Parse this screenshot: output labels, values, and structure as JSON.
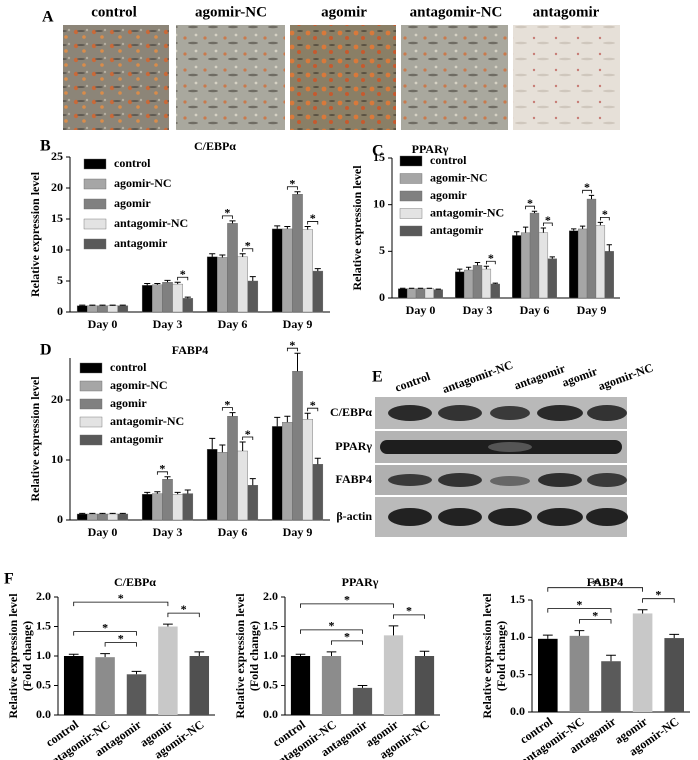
{
  "panel_a": {
    "label": "A",
    "columns": [
      "control",
      "agomir-NC",
      "agomir",
      "antagomir-NC",
      "antagomir"
    ]
  },
  "panel_e": {
    "label": "E",
    "columns": [
      "control",
      "antagomir-NC",
      "antagomir",
      "agomir",
      "agomir-NC"
    ],
    "rows": [
      "C/EBPα",
      "PPARγ",
      "FABP4",
      "β-actin"
    ]
  },
  "panel_f": {
    "label": "F"
  },
  "chart_data": [
    {
      "type": "bar",
      "panel": "B",
      "title": "C/EBPα",
      "ylabel": "Relative expression level",
      "categories": [
        "Day 0",
        "Day 3",
        "Day 6",
        "Day 9"
      ],
      "ylim": [
        0,
        25
      ],
      "yticks": [
        0,
        5,
        10,
        15,
        20,
        25
      ],
      "legend": "upper left",
      "series": [
        {
          "name": "control",
          "color": "#000000",
          "values": [
            1,
            4.3,
            8.9,
            13.4
          ],
          "errors": [
            0.1,
            0.3,
            0.5,
            0.5
          ]
        },
        {
          "name": "agomir-NC",
          "color": "#a6a6a6",
          "values": [
            1,
            4.4,
            8.8,
            13.4
          ],
          "errors": [
            0.1,
            0.2,
            0.4,
            0.4
          ]
        },
        {
          "name": "agomir",
          "color": "#808080",
          "values": [
            1,
            4.8,
            14.3,
            19.0
          ],
          "errors": [
            0.1,
            0.3,
            0.4,
            0.4
          ]
        },
        {
          "name": "antagomir-NC",
          "color": "#e3e3e3",
          "values": [
            1,
            4.5,
            8.9,
            13.3
          ],
          "errors": [
            0.1,
            0.3,
            0.5,
            0.5
          ]
        },
        {
          "name": "antagomir",
          "color": "#595959",
          "values": [
            1,
            2.2,
            5.0,
            6.6
          ],
          "errors": [
            0.1,
            0.2,
            0.7,
            0.4
          ]
        }
      ],
      "annotations": [
        {
          "text": "*",
          "category": 1,
          "series": [
            3,
            4
          ]
        },
        {
          "text": "*",
          "category": 2,
          "series": [
            1,
            2
          ]
        },
        {
          "text": "*",
          "category": 2,
          "series": [
            3,
            4
          ]
        },
        {
          "text": "*",
          "category": 3,
          "series": [
            1,
            2
          ]
        },
        {
          "text": "*",
          "category": 3,
          "series": [
            3,
            4
          ]
        }
      ]
    },
    {
      "type": "bar",
      "panel": "C",
      "title": "PPARγ",
      "ylabel": "Relative expression level",
      "categories": [
        "Day 0",
        "Day 3",
        "Day 6",
        "Day 9"
      ],
      "ylim": [
        0,
        15
      ],
      "yticks": [
        0,
        5,
        10,
        15
      ],
      "legend": "upper left",
      "series": [
        {
          "name": "control",
          "color": "#000000",
          "values": [
            1,
            2.8,
            6.7,
            7.2
          ],
          "errors": [
            0.05,
            0.3,
            0.4,
            0.2
          ]
        },
        {
          "name": "agomir-NC",
          "color": "#a6a6a6",
          "values": [
            1,
            3.0,
            7.0,
            7.4
          ],
          "errors": [
            0.05,
            0.3,
            0.6,
            0.3
          ]
        },
        {
          "name": "agomir",
          "color": "#808080",
          "values": [
            1,
            3.5,
            9.1,
            10.6
          ],
          "errors": [
            0.05,
            0.3,
            0.2,
            0.4
          ]
        },
        {
          "name": "antagomir-NC",
          "color": "#e3e3e3",
          "values": [
            1,
            3.1,
            7.0,
            7.8
          ],
          "errors": [
            0.05,
            0.3,
            0.5,
            0.3
          ]
        },
        {
          "name": "antagomir",
          "color": "#595959",
          "values": [
            0.9,
            1.5,
            4.2,
            5.0
          ],
          "errors": [
            0.05,
            0.1,
            0.2,
            0.7
          ]
        }
      ],
      "annotations": [
        {
          "text": "*",
          "category": 1,
          "series": [
            3,
            4
          ]
        },
        {
          "text": "*",
          "category": 2,
          "series": [
            1,
            2
          ]
        },
        {
          "text": "*",
          "category": 2,
          "series": [
            3,
            4
          ]
        },
        {
          "text": "*",
          "category": 3,
          "series": [
            1,
            2
          ]
        },
        {
          "text": "*",
          "category": 3,
          "series": [
            3,
            4
          ]
        }
      ]
    },
    {
      "type": "bar",
      "panel": "D",
      "title": "FABP4",
      "ylabel": "Relative expression level",
      "categories": [
        "Day 0",
        "Day 3",
        "Day 6",
        "Day 9"
      ],
      "ylim": [
        0,
        27
      ],
      "yticks": [
        0,
        10,
        20
      ],
      "legend": "upper left",
      "series": [
        {
          "name": "control",
          "color": "#000000",
          "values": [
            1,
            4.3,
            11.8,
            15.6
          ],
          "errors": [
            0.1,
            0.3,
            1.8,
            1.5
          ]
        },
        {
          "name": "agomir-NC",
          "color": "#a6a6a6",
          "values": [
            1,
            4.4,
            11.3,
            16.3
          ],
          "errors": [
            0.1,
            0.3,
            1.2,
            1.0
          ]
        },
        {
          "name": "agomir",
          "color": "#808080",
          "values": [
            1,
            6.8,
            17.3,
            24.8
          ],
          "errors": [
            0.1,
            0.4,
            0.6,
            3.0
          ]
        },
        {
          "name": "antagomir-NC",
          "color": "#e3e3e3",
          "values": [
            1,
            4.3,
            11.5,
            16.8
          ],
          "errors": [
            0.1,
            0.3,
            1.5,
            1.0
          ]
        },
        {
          "name": "antagomir",
          "color": "#595959",
          "values": [
            1,
            4.4,
            5.8,
            9.3
          ],
          "errors": [
            0.1,
            0.6,
            1.1,
            1.0
          ]
        }
      ],
      "annotations": [
        {
          "text": "*",
          "category": 1,
          "series": [
            1,
            2
          ]
        },
        {
          "text": "*",
          "category": 2,
          "series": [
            1,
            2
          ]
        },
        {
          "text": "*",
          "category": 2,
          "series": [
            3,
            4
          ]
        },
        {
          "text": "*",
          "category": 3,
          "series": [
            1,
            2
          ]
        },
        {
          "text": "*",
          "category": 3,
          "series": [
            3,
            4
          ]
        }
      ]
    },
    {
      "type": "bar",
      "title": "C/EBPα",
      "ylabel": [
        "Relative expression level",
        "(Fold change)"
      ],
      "categories": [
        "control",
        "antagomir-NC",
        "antagomir",
        "agomir",
        "agomir-NC"
      ],
      "values": [
        1.0,
        0.98,
        0.69,
        1.5,
        1.0
      ],
      "errors": [
        0.03,
        0.06,
        0.05,
        0.04,
        0.07
      ],
      "colors": [
        "#000000",
        "#8c8c8c",
        "#5a5a5a",
        "#c8c8c8",
        "#505050"
      ],
      "ylim": [
        0,
        2
      ],
      "yticks": [
        {
          "value": 0,
          "label": "0.0"
        },
        {
          "value": 0.5,
          "label": "0.5"
        },
        {
          "value": 1,
          "label": "1.0"
        },
        {
          "value": 1.5,
          "label": "1.5"
        },
        {
          "value": 2,
          "label": "2.0"
        }
      ],
      "annotations": [
        {
          "text": "*",
          "categories": [
            1,
            2
          ]
        },
        {
          "text": "*",
          "categories": [
            3,
            4
          ]
        },
        {
          "text": "*",
          "categories": [
            0,
            2
          ]
        },
        {
          "text": "*",
          "categories": [
            0,
            3
          ]
        }
      ]
    },
    {
      "type": "bar",
      "title": "PPARγ",
      "ylabel": [
        "Relative expression level",
        "(Fold change)"
      ],
      "categories": [
        "control",
        "antagomir-NC",
        "antagomir",
        "agomir",
        "agomir-NC"
      ],
      "values": [
        1.0,
        1.0,
        0.46,
        1.35,
        1.0
      ],
      "errors": [
        0.03,
        0.07,
        0.04,
        0.16,
        0.08
      ],
      "colors": [
        "#000000",
        "#8c8c8c",
        "#5a5a5a",
        "#c8c8c8",
        "#505050"
      ],
      "ylim": [
        0,
        2
      ],
      "yticks": [
        {
          "value": 0,
          "label": "0.0"
        },
        {
          "value": 0.5,
          "label": "0.5"
        },
        {
          "value": 1,
          "label": "1.0"
        },
        {
          "value": 1.5,
          "label": "1.5"
        },
        {
          "value": 2,
          "label": "2.0"
        }
      ],
      "annotations": [
        {
          "text": "*",
          "categories": [
            1,
            2
          ]
        },
        {
          "text": "*",
          "categories": [
            3,
            4
          ]
        },
        {
          "text": "*",
          "categories": [
            0,
            2
          ]
        },
        {
          "text": "*",
          "categories": [
            0,
            3
          ]
        }
      ]
    },
    {
      "type": "bar",
      "title": "FABP4",
      "ylabel": [
        "Relative expression level",
        "(Fold change)"
      ],
      "categories": [
        "control",
        "antagomir-NC",
        "antagomir",
        "agomir",
        "agomir-NC"
      ],
      "values": [
        0.98,
        1.02,
        0.68,
        1.32,
        0.99
      ],
      "errors": [
        0.05,
        0.07,
        0.08,
        0.05,
        0.05
      ],
      "colors": [
        "#000000",
        "#8c8c8c",
        "#5a5a5a",
        "#c8c8c8",
        "#505050"
      ],
      "ylim": [
        0,
        1.5
      ],
      "yticks": [
        {
          "value": 0,
          "label": "0.0"
        },
        {
          "value": 0.5,
          "label": "0.5"
        },
        {
          "value": 1,
          "label": "1.0"
        },
        {
          "value": 1.5,
          "label": "1.5"
        }
      ],
      "annotations": [
        {
          "text": "*",
          "categories": [
            1,
            2
          ]
        },
        {
          "text": "*",
          "categories": [
            3,
            4
          ]
        },
        {
          "text": "*",
          "categories": [
            0,
            2
          ]
        },
        {
          "text": "*",
          "categories": [
            0,
            3
          ]
        }
      ]
    }
  ]
}
